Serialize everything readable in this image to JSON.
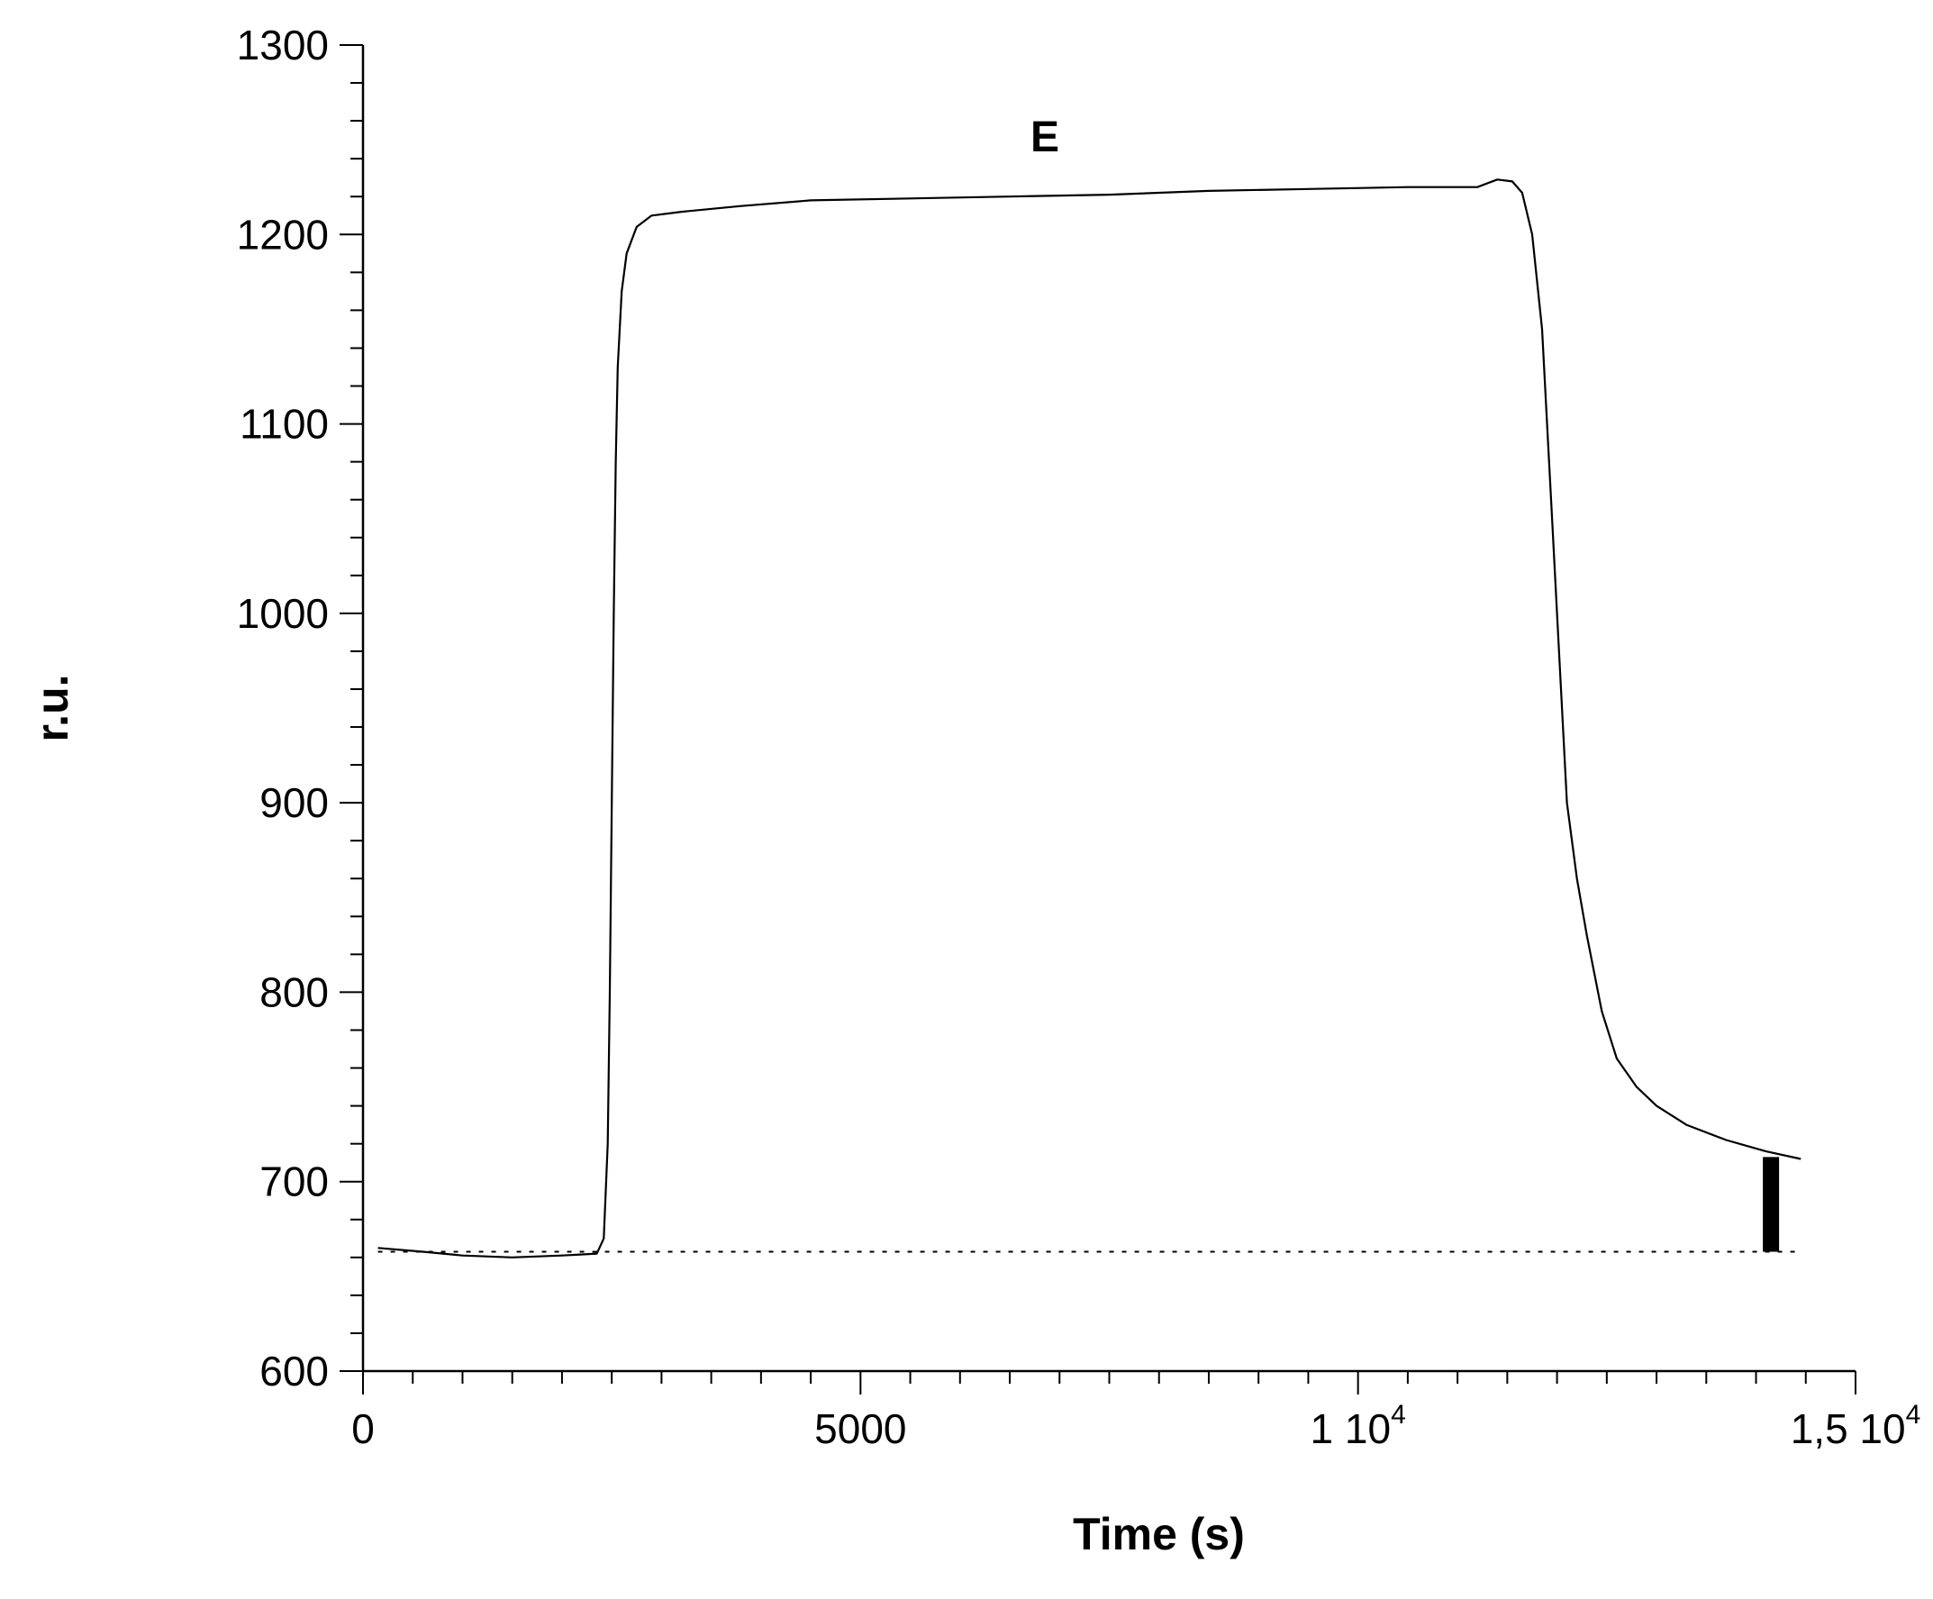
{
  "chart_data": {
    "type": "line",
    "annotation": "E",
    "xlabel": "Time (s)",
    "ylabel": "r.u.",
    "xlim": [
      0,
      15000
    ],
    "ylim": [
      600,
      1300
    ],
    "x_ticks": [
      {
        "value": 0,
        "label": "0",
        "sup": ""
      },
      {
        "value": 5000,
        "label": "5000",
        "sup": ""
      },
      {
        "value": 10000,
        "label": "1 10",
        "sup": "4"
      },
      {
        "value": 15000,
        "label": "1,5 10",
        "sup": "4"
      }
    ],
    "x_minor_step": 500,
    "y_ticks": [
      {
        "value": 600,
        "label": "600"
      },
      {
        "value": 700,
        "label": "700"
      },
      {
        "value": 800,
        "label": "800"
      },
      {
        "value": 900,
        "label": "900"
      },
      {
        "value": 1000,
        "label": "1000"
      },
      {
        "value": 1100,
        "label": "1100"
      },
      {
        "value": 1200,
        "label": "1200"
      },
      {
        "value": 1300,
        "label": "1300"
      }
    ],
    "y_minor_step": 20,
    "grid": false,
    "baseline": {
      "y": 663,
      "x_range": [
        150,
        14450
      ],
      "style": "dotted"
    },
    "marker_bar": {
      "x": 14150,
      "y_range": [
        663,
        713
      ]
    },
    "series": [
      {
        "color": "#000000",
        "points": [
          [
            150,
            665
          ],
          [
            600,
            663
          ],
          [
            1000,
            661
          ],
          [
            1500,
            660
          ],
          [
            2000,
            661
          ],
          [
            2350,
            662
          ],
          [
            2420,
            670
          ],
          [
            2460,
            720
          ],
          [
            2480,
            800
          ],
          [
            2500,
            900
          ],
          [
            2520,
            1000
          ],
          [
            2540,
            1080
          ],
          [
            2560,
            1130
          ],
          [
            2600,
            1170
          ],
          [
            2650,
            1190
          ],
          [
            2750,
            1204
          ],
          [
            2900,
            1210
          ],
          [
            3200,
            1212
          ],
          [
            3800,
            1215
          ],
          [
            4500,
            1218
          ],
          [
            5500,
            1219
          ],
          [
            6500,
            1220
          ],
          [
            7500,
            1221
          ],
          [
            8500,
            1223
          ],
          [
            9500,
            1224
          ],
          [
            10500,
            1225
          ],
          [
            11200,
            1225
          ],
          [
            11400,
            1229
          ],
          [
            11550,
            1228
          ],
          [
            11650,
            1222
          ],
          [
            11750,
            1200
          ],
          [
            11850,
            1150
          ],
          [
            11950,
            1050
          ],
          [
            12000,
            1000
          ],
          [
            12050,
            950
          ],
          [
            12100,
            900
          ],
          [
            12200,
            860
          ],
          [
            12300,
            830
          ],
          [
            12450,
            790
          ],
          [
            12600,
            765
          ],
          [
            12800,
            750
          ],
          [
            13000,
            740
          ],
          [
            13300,
            730
          ],
          [
            13700,
            722
          ],
          [
            14100,
            716
          ],
          [
            14450,
            712
          ]
        ]
      }
    ]
  }
}
